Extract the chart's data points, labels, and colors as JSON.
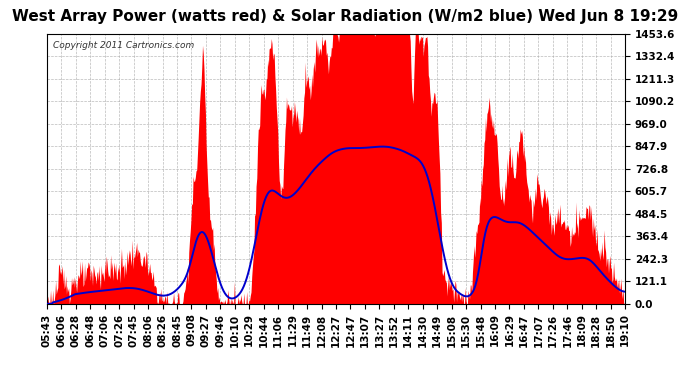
{
  "title": "West Array Power (watts red) & Solar Radiation (W/m2 blue) Wed Jun 8 19:29",
  "copyright": "Copyright 2011 Cartronics.com",
  "y_ticks": [
    0.0,
    121.1,
    242.3,
    363.4,
    484.5,
    605.7,
    726.8,
    847.9,
    969.0,
    1090.2,
    1211.3,
    1332.4,
    1453.6
  ],
  "y_max": 1453.6,
  "x_labels": [
    "05:43",
    "06:06",
    "06:28",
    "06:48",
    "07:06",
    "07:26",
    "07:45",
    "08:06",
    "08:26",
    "08:45",
    "09:08",
    "09:27",
    "09:46",
    "10:10",
    "10:29",
    "10:44",
    "11:06",
    "11:29",
    "11:49",
    "12:08",
    "12:27",
    "12:47",
    "13:07",
    "13:27",
    "13:52",
    "14:11",
    "14:30",
    "14:49",
    "15:08",
    "15:30",
    "15:48",
    "16:09",
    "16:29",
    "16:47",
    "17:07",
    "17:26",
    "17:46",
    "18:09",
    "18:28",
    "18:50",
    "19:10"
  ],
  "bg_color": "#ffffff",
  "plot_bg_color": "#ffffff",
  "fill_color": "#ff0000",
  "line_color": "#0000cc",
  "grid_color": "#aaaaaa",
  "title_fontsize": 11,
  "tick_fontsize": 7.5
}
